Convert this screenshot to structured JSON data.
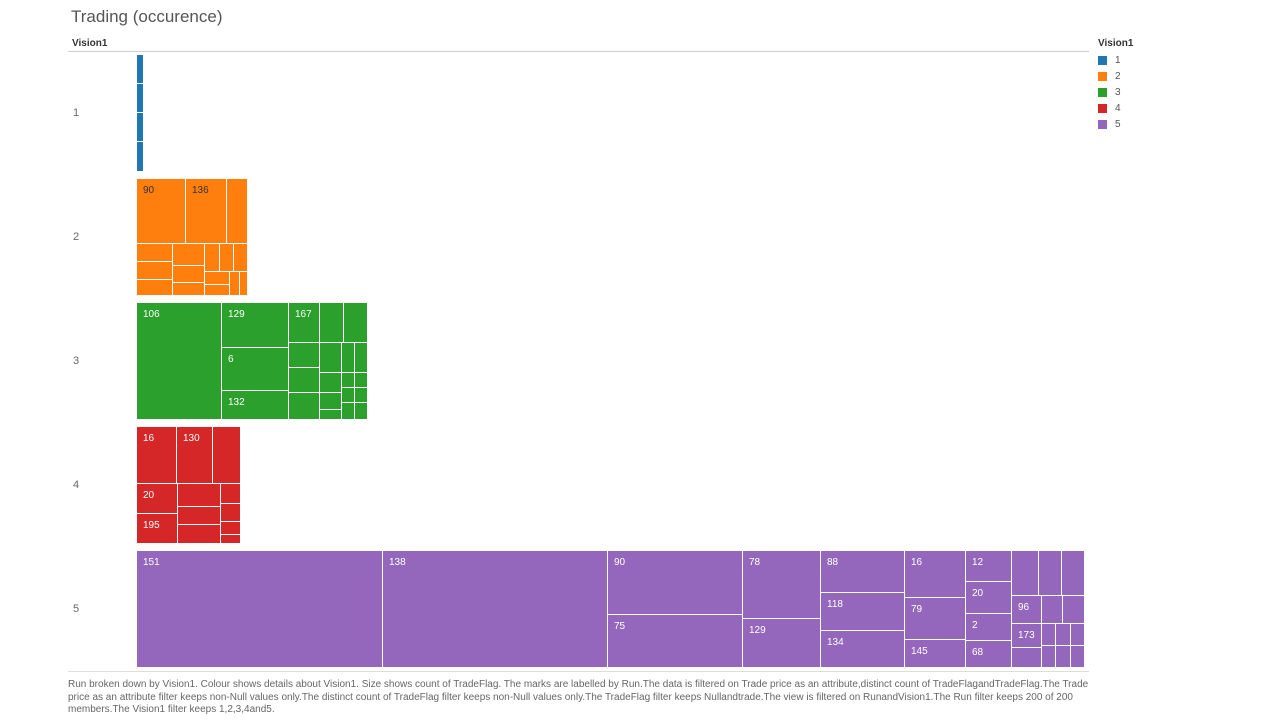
{
  "title": "Trading (occurence)",
  "row_header": "Vision1",
  "legend": {
    "title": "Vision1",
    "items": [
      {
        "label": "1",
        "color": "#1f77b4"
      },
      {
        "label": "2",
        "color": "#ff7f0e"
      },
      {
        "label": "3",
        "color": "#2ca02c"
      },
      {
        "label": "4",
        "color": "#d62728"
      },
      {
        "label": "5",
        "color": "#9467bd"
      }
    ]
  },
  "chart_data": {
    "type": "treemap",
    "title": "Trading (occurence)",
    "row_dimension": "Vision1",
    "rows": [
      {
        "label": "1",
        "visible_tile_labels": []
      },
      {
        "label": "2",
        "visible_tile_labels": [
          "90",
          "136"
        ]
      },
      {
        "label": "3",
        "visible_tile_labels": [
          "106",
          "129",
          "167",
          "6",
          "132"
        ]
      },
      {
        "label": "4",
        "visible_tile_labels": [
          "16",
          "130",
          "20",
          "195"
        ]
      },
      {
        "label": "5",
        "visible_tile_labels": [
          "151",
          "138",
          "90",
          "78",
          "88",
          "16",
          "12",
          "20",
          "118",
          "75",
          "79",
          "96",
          "2",
          "129",
          "173",
          "134",
          "145",
          "68"
        ]
      }
    ]
  },
  "caption": "Run broken down by Vision1. Colour shows details about Vision1. Size shows count of TradeFlag. The marks are labelled by Run.The data is filtered on Trade price as an attribute,distinct count of TradeFlagandTradeFlag.The Trade price as an attribute filter keeps non-Null values only.The distinct count of TradeFlag filter keeps non-Null values only.The TradeFlag filter keeps Nullandtrade.The view is filtered on RunandVision1.The Run filter keeps 200 of 200 members.The Vision1 filter keeps 1,2,3,4and5."
}
